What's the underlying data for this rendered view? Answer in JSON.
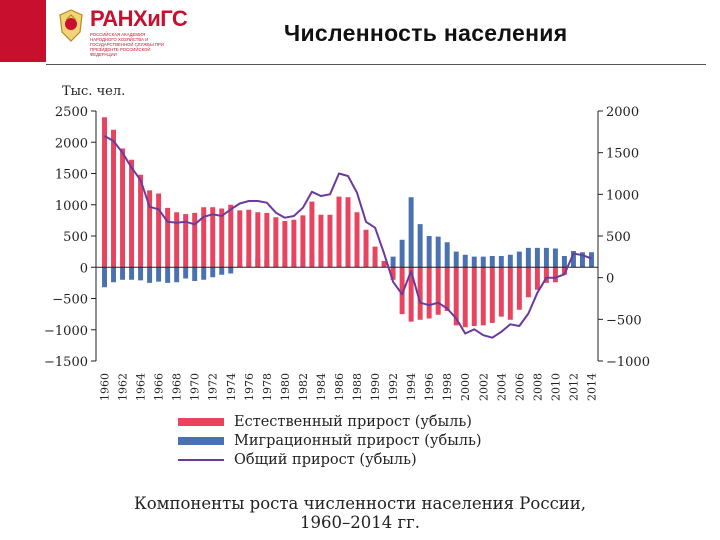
{
  "header": {
    "logo_name": "РАНХиГС",
    "logo_subtitle": "РОССИЙСКАЯ АКАДЕМИЯ НАРОДНОГО ХОЗЯЙСТВА И ГОСУДАРСТВЕННОЙ СЛУЖБЫ ПРИ ПРЕЗИДЕНТЕ РОССИЙСКОЙ ФЕДЕРАЦИИ",
    "slide_title": "Численность населения"
  },
  "colors": {
    "natural": "#e8435f",
    "migration": "#4a72b0",
    "total": "#6a3a9c",
    "brand": "#c8102e"
  },
  "chart_data": {
    "type": "bar",
    "title": "Компоненты роста численности населения России, 1960–2014 гг.",
    "caption_line1": "Компоненты роста численности населения России,",
    "caption_line2": "1960–2014 гг.",
    "unit_label": "Тыс. чел.",
    "x": [
      1960,
      1961,
      1962,
      1963,
      1964,
      1965,
      1966,
      1967,
      1968,
      1969,
      1970,
      1971,
      1972,
      1973,
      1974,
      1975,
      1976,
      1977,
      1978,
      1979,
      1980,
      1981,
      1982,
      1983,
      1984,
      1985,
      1986,
      1987,
      1988,
      1989,
      1990,
      1991,
      1992,
      1993,
      1994,
      1995,
      1996,
      1997,
      1998,
      1999,
      2000,
      2001,
      2002,
      2003,
      2004,
      2005,
      2006,
      2007,
      2008,
      2009,
      2010,
      2011,
      2012,
      2013,
      2014
    ],
    "x_tick_labels": [
      "1960",
      "1962",
      "1964",
      "1966",
      "1968",
      "1970",
      "1972",
      "1974",
      "1976",
      "1978",
      "1980",
      "1982",
      "1984",
      "1986",
      "1988",
      "1990",
      "1992",
      "1994",
      "1996",
      "1998",
      "2000",
      "2002",
      "2004",
      "2006",
      "2008",
      "2010",
      "2012",
      "2014"
    ],
    "left_axis": {
      "ylim": [
        -1500,
        2500
      ],
      "ticks": [
        2500,
        2000,
        1500,
        1000,
        500,
        0,
        -500,
        -1000,
        -1500
      ],
      "tick_labels": [
        "2500",
        "2000",
        "1500",
        "1000",
        "500",
        "0",
        "−500",
        "−1000",
        "−1500"
      ]
    },
    "right_axis": {
      "ylim": [
        -1000,
        2000
      ],
      "ticks": [
        2000,
        1500,
        1000,
        500,
        0,
        -500,
        -1000
      ],
      "tick_labels": [
        "2000",
        "1500",
        "1000",
        "500",
        "0",
        "−500",
        "−1000"
      ]
    },
    "series": [
      {
        "name": "Естественный прирост (убыль)",
        "axis": "left",
        "type": "bar",
        "values": [
          2400,
          2200,
          1900,
          1720,
          1480,
          1230,
          1180,
          950,
          880,
          850,
          870,
          960,
          960,
          940,
          1000,
          910,
          920,
          880,
          870,
          800,
          740,
          760,
          830,
          1050,
          840,
          840,
          1130,
          1120,
          880,
          600,
          330,
          100,
          -200,
          -750,
          -870,
          -840,
          -820,
          -760,
          -700,
          -930,
          -960,
          -940,
          -930,
          -890,
          -790,
          -840,
          -680,
          -480,
          -360,
          -250,
          -240,
          -120,
          0,
          20,
          30
        ]
      },
      {
        "name": "Миграционный прирост (убыль)",
        "axis": "left",
        "type": "bar",
        "values": [
          -320,
          -240,
          -200,
          -200,
          -210,
          -250,
          -230,
          -250,
          -240,
          -180,
          -220,
          -200,
          -160,
          -120,
          -100,
          60,
          90,
          150,
          120,
          50,
          70,
          60,
          150,
          210,
          270,
          300,
          290,
          290,
          300,
          210,
          170,
          50,
          170,
          440,
          1120,
          690,
          500,
          490,
          400,
          250,
          200,
          170,
          170,
          180,
          180,
          200,
          250,
          310,
          310,
          310,
          300,
          180,
          260,
          240,
          240
        ]
      },
      {
        "name": "Общий прирост (убыль)",
        "axis": "right",
        "type": "line",
        "values": [
          1700,
          1640,
          1500,
          1320,
          1170,
          850,
          820,
          670,
          660,
          670,
          640,
          730,
          760,
          740,
          820,
          890,
          920,
          920,
          900,
          780,
          720,
          740,
          840,
          1030,
          980,
          1000,
          1250,
          1220,
          1020,
          670,
          600,
          290,
          -50,
          -200,
          80,
          -300,
          -330,
          -300,
          -370,
          -490,
          -670,
          -620,
          -690,
          -720,
          -650,
          -560,
          -580,
          -430,
          -180,
          0,
          0,
          40,
          290,
          270,
          230
        ]
      }
    ],
    "legend_position": "bottom",
    "grid": false
  }
}
